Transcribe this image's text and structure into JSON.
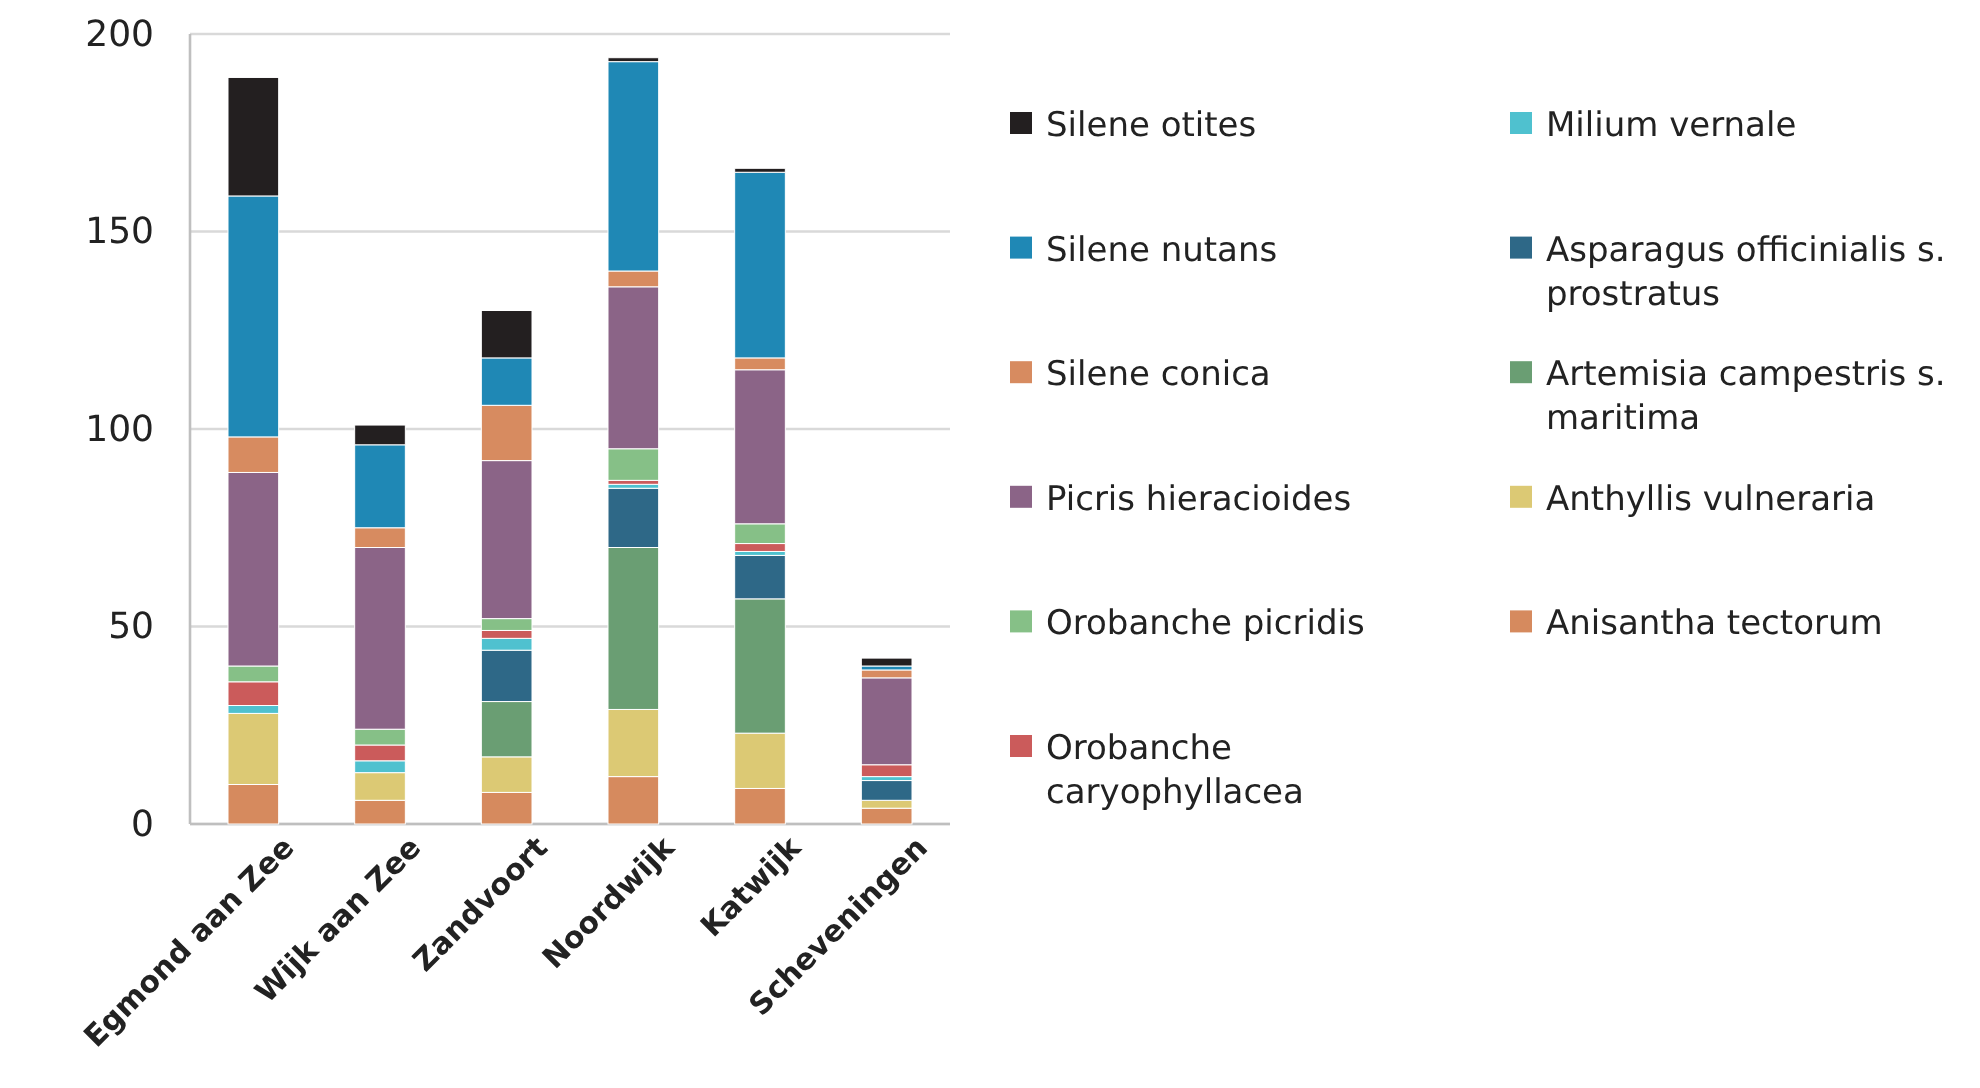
{
  "chart_data": {
    "type": "bar",
    "stacked": true,
    "legend": "right",
    "grid": "y",
    "categories": [
      "Egmond aan Zee",
      "Wijk aan Zee",
      "Zandvoort",
      "Noordwijk",
      "Katwijk",
      "Scheveningen"
    ],
    "ylim": [
      0,
      200
    ],
    "yticks": [
      0,
      50,
      100,
      150,
      200
    ],
    "series": [
      {
        "name": "Anisantha tectorum",
        "color": "#d68a5e",
        "values": [
          10,
          6,
          8,
          12,
          9,
          4
        ]
      },
      {
        "name": "Anthyllis vulneraria",
        "color": "#dcc974",
        "values": [
          18,
          7,
          9,
          17,
          14,
          2
        ]
      },
      {
        "name": "Artemisia campestris s. maritima",
        "color": "#6a9e73",
        "values": [
          0,
          0,
          14,
          41,
          34,
          0
        ]
      },
      {
        "name": "Asparagus officinialis s. prostratus",
        "color": "#2e6887",
        "values": [
          0,
          0,
          13,
          15,
          11,
          5
        ]
      },
      {
        "name": "Milium vernale",
        "color": "#4fc1cf",
        "values": [
          2,
          3,
          3,
          1,
          1,
          1
        ]
      },
      {
        "name": "Orobanche caryophyllacea",
        "color": "#cb5b5b",
        "values": [
          6,
          4,
          2,
          1,
          2,
          3
        ]
      },
      {
        "name": "Orobanche picridis",
        "color": "#86c087",
        "values": [
          4,
          4,
          3,
          8,
          5,
          0
        ]
      },
      {
        "name": "Picris hieracioides",
        "color": "#8b6487",
        "values": [
          49,
          46,
          40,
          41,
          39,
          22
        ]
      },
      {
        "name": "Silene conica",
        "color": "#d78b60",
        "values": [
          9,
          5,
          14,
          4,
          3,
          2
        ]
      },
      {
        "name": "Silene nutans",
        "color": "#1f88b5",
        "values": [
          61,
          21,
          12,
          53,
          47,
          1
        ]
      },
      {
        "name": "Silene otites",
        "color": "#231f20",
        "values": [
          30,
          5,
          12,
          1,
          1,
          2
        ]
      }
    ]
  }
}
